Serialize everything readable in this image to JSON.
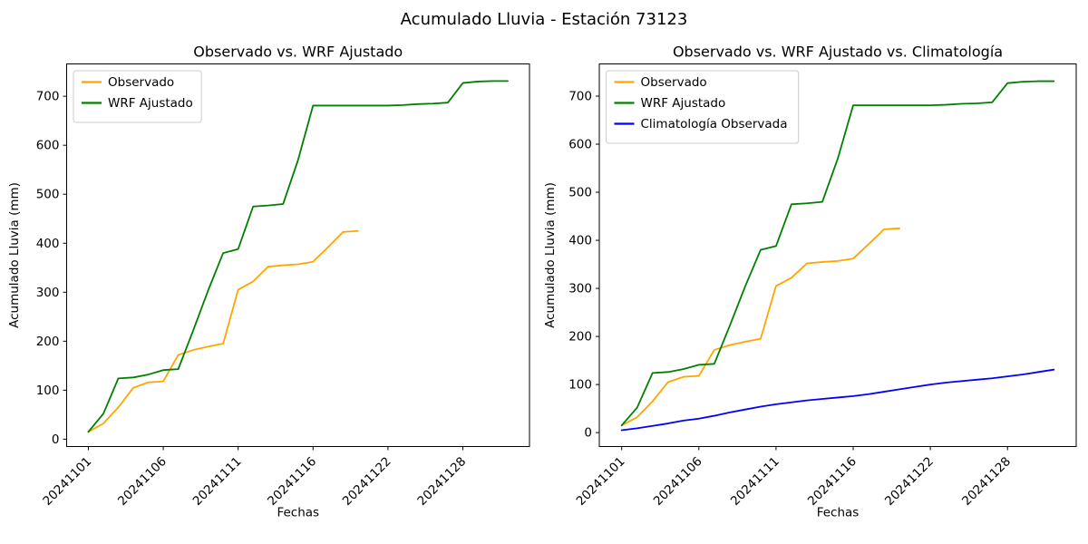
{
  "figure": {
    "suptitle": "Acumulado Lluvia - Estación 73123"
  },
  "colors": {
    "observado": "#FFA500",
    "wrf": "#008000",
    "climatologia": "#0000FF",
    "axis": "#000000",
    "text": "#000000",
    "legend_border": "#CCCCCC",
    "background": "#FFFFFF"
  },
  "chart_data": [
    {
      "type": "line",
      "title": "Observado vs. WRF Ajustado",
      "xlabel": "Fechas",
      "ylabel": "Acumulado Lluvia (mm)",
      "grid": false,
      "legend_position": "upper left",
      "x": [
        "20241101",
        "20241102",
        "20241103",
        "20241104",
        "20241105",
        "20241106",
        "20241107",
        "20241108",
        "20241109",
        "20241110",
        "20241111",
        "20241112",
        "20241113",
        "20241114",
        "20241115",
        "20241116",
        "20241117",
        "20241118",
        "20241119",
        "20241121",
        "20241122",
        "20241123",
        "20241124",
        "20241126",
        "20241127",
        "20241128",
        "20241129",
        "20241130",
        "20241201"
      ],
      "xtick_indices": [
        0,
        5,
        10,
        15,
        20,
        25
      ],
      "xtick_labels": [
        "20241101",
        "20241106",
        "20241111",
        "20241116",
        "20241122",
        "20241128"
      ],
      "yticks": [
        0,
        100,
        200,
        300,
        400,
        500,
        600,
        700
      ],
      "ylim": [
        -15,
        766
      ],
      "series": [
        {
          "name": "Observado",
          "color_key": "observado",
          "values": [
            15,
            32,
            65,
            105,
            116,
            118,
            172,
            182,
            189,
            195,
            305,
            322,
            352,
            355,
            357,
            362,
            392,
            423,
            425
          ]
        },
        {
          "name": "WRF Ajustado",
          "color_key": "wrf",
          "values": [
            15,
            52,
            124,
            126,
            132,
            141,
            143,
            222,
            304,
            380,
            388,
            475,
            477,
            480,
            570,
            681,
            681,
            681,
            681,
            681,
            681,
            682,
            684,
            685,
            687,
            727,
            730,
            731,
            731
          ]
        }
      ]
    },
    {
      "type": "line",
      "title": "Observado vs. WRF Ajustado vs. Climatología",
      "xlabel": "Fechas",
      "ylabel": "Acumulado Lluvia (mm)",
      "grid": false,
      "legend_position": "upper left",
      "x": [
        "20241101",
        "20241102",
        "20241103",
        "20241104",
        "20241105",
        "20241106",
        "20241107",
        "20241108",
        "20241109",
        "20241110",
        "20241111",
        "20241112",
        "20241113",
        "20241114",
        "20241115",
        "20241116",
        "20241117",
        "20241118",
        "20241119",
        "20241121",
        "20241122",
        "20241123",
        "20241124",
        "20241126",
        "20241127",
        "20241128",
        "20241129",
        "20241130",
        "20241201"
      ],
      "xtick_indices": [
        0,
        5,
        10,
        15,
        20,
        25
      ],
      "xtick_labels": [
        "20241101",
        "20241106",
        "20241111",
        "20241116",
        "20241122",
        "20241128"
      ],
      "yticks": [
        0,
        100,
        200,
        300,
        400,
        500,
        600,
        700
      ],
      "ylim": [
        -29,
        767
      ],
      "series": [
        {
          "name": "Observado",
          "color_key": "observado",
          "values": [
            15,
            32,
            65,
            105,
            116,
            118,
            172,
            182,
            189,
            195,
            305,
            322,
            352,
            355,
            357,
            362,
            392,
            423,
            425
          ]
        },
        {
          "name": "WRF Ajustado",
          "color_key": "wrf",
          "values": [
            15,
            52,
            124,
            126,
            132,
            141,
            143,
            222,
            304,
            380,
            388,
            475,
            477,
            480,
            570,
            681,
            681,
            681,
            681,
            681,
            681,
            682,
            684,
            685,
            687,
            727,
            730,
            731,
            731
          ]
        },
        {
          "name": "Climatología Observada",
          "color_key": "climatologia",
          "values": [
            5,
            9,
            14,
            19,
            25,
            29,
            35,
            42,
            48,
            54,
            59,
            63,
            67,
            70,
            73,
            76,
            80,
            85,
            90,
            95,
            100,
            104,
            107,
            110,
            113,
            117,
            121,
            126,
            131
          ]
        }
      ]
    }
  ]
}
